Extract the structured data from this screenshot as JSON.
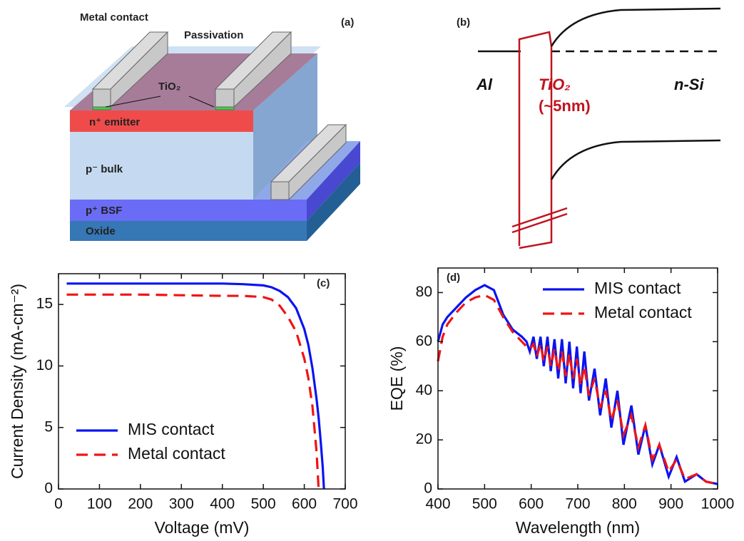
{
  "diagram_a": {
    "panel_label": "(a)",
    "metal_contact": "Metal contact",
    "passivation": "Passivation",
    "tio2": "TiO₂",
    "emitter": "n⁺ emitter",
    "bulk": "p⁻ bulk",
    "bsf": "p⁺ BSF",
    "oxide": "Oxide"
  },
  "diagram_b": {
    "panel_label": "(b)",
    "al": "Al",
    "tio2": "TiO₂",
    "thickness": "(~5nm)",
    "nsi": "n-Si"
  },
  "chart_data": [
    {
      "type": "line",
      "panel_label": "(c)",
      "x_label": "Voltage (mV)",
      "y_label": "Current Density (mA-cm⁻²)",
      "x": [
        20,
        100,
        200,
        300,
        400,
        450,
        500,
        520,
        540,
        560,
        580,
        600,
        610,
        620,
        630,
        635,
        640,
        645,
        648
      ],
      "series": [
        {
          "name": "MIS contact",
          "color": "#0a14f0",
          "line_style": "solid",
          "values": [
            16.7,
            16.7,
            16.7,
            16.7,
            16.7,
            16.65,
            16.55,
            16.4,
            16.1,
            15.6,
            14.7,
            13.0,
            11.7,
            9.8,
            7.3,
            5.8,
            3.9,
            1.8,
            0
          ]
        },
        {
          "name": "Metal contact",
          "color": "#f01414",
          "line_style": "dashed",
          "values": [
            15.8,
            15.8,
            15.8,
            15.75,
            15.7,
            15.7,
            15.6,
            15.4,
            14.9,
            14.0,
            12.8,
            10.6,
            9.0,
            6.7,
            3.0,
            0,
            null,
            null,
            null
          ]
        }
      ],
      "xlim": [
        0,
        700
      ],
      "xticks": [
        0,
        100,
        200,
        300,
        400,
        500,
        600,
        700
      ],
      "ylim": [
        0,
        17.5
      ],
      "yticks": [
        0,
        5,
        10,
        15
      ],
      "grid": false,
      "legend": "lower left"
    },
    {
      "type": "line",
      "panel_label": "(d)",
      "x_label": "Wavelength (nm)",
      "y_label": "EQE (%)",
      "x": [
        400,
        410,
        420,
        440,
        460,
        480,
        500,
        520,
        540,
        560,
        580,
        590,
        597,
        605,
        612,
        620,
        627,
        635,
        642,
        650,
        658,
        666,
        674,
        682,
        690,
        698,
        706,
        714,
        724,
        736,
        748,
        760,
        772,
        785,
        798,
        815,
        830,
        845,
        860,
        875,
        895,
        912,
        930,
        955,
        975,
        1000
      ],
      "series": [
        {
          "name": "MIS contact",
          "color": "#0a14f0",
          "line_style": "solid",
          "values": [
            60,
            67,
            70,
            74,
            78,
            81,
            83,
            81,
            71,
            65,
            62,
            60,
            56,
            62,
            53,
            62,
            50,
            62,
            48,
            61,
            45,
            61,
            43,
            60,
            41,
            58,
            39,
            56,
            36,
            49,
            30,
            45,
            25,
            40,
            18,
            34,
            14,
            26,
            10,
            18,
            5,
            13,
            3,
            6,
            3,
            2
          ]
        },
        {
          "name": "Metal contact",
          "color": "#f01414",
          "line_style": "dashed",
          "values": [
            52,
            62,
            67,
            72,
            76,
            78,
            79,
            77,
            70,
            64,
            60,
            58,
            57,
            59,
            54,
            59,
            52,
            58,
            50,
            57,
            48,
            56,
            46,
            55,
            45,
            53,
            42,
            50,
            38,
            45,
            33,
            40,
            28,
            36,
            22,
            30,
            17,
            26,
            12,
            18,
            7,
            12,
            4,
            6,
            3,
            2
          ]
        }
      ],
      "xlim": [
        400,
        1000
      ],
      "xticks": [
        400,
        500,
        600,
        700,
        800,
        900,
        1000
      ],
      "ylim": [
        0,
        90
      ],
      "yticks": [
        0,
        20,
        40,
        60,
        80
      ],
      "grid": false,
      "legend": "upper right"
    }
  ]
}
